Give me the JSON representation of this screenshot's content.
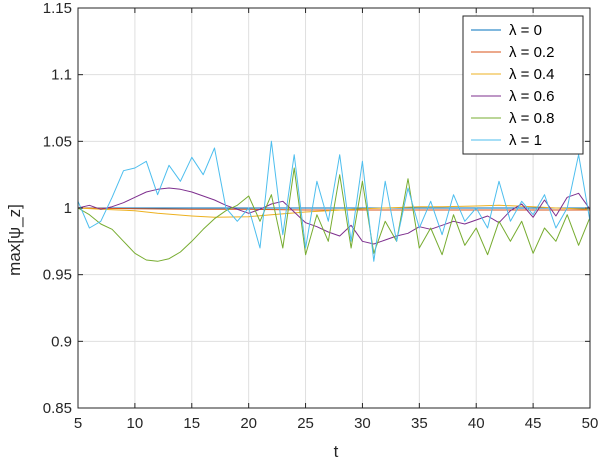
{
  "chart_data": {
    "type": "line",
    "xlabel": "t",
    "ylabel": "max[ψ_z]",
    "xlim": [
      5,
      50
    ],
    "ylim": [
      0.85,
      1.15
    ],
    "xticks": [
      5,
      10,
      15,
      20,
      25,
      30,
      35,
      40,
      45,
      50
    ],
    "yticks": [
      0.85,
      0.9,
      0.95,
      1,
      1.05,
      1.1,
      1.15
    ],
    "xtick_labels": [
      "5",
      "10",
      "15",
      "20",
      "25",
      "30",
      "35",
      "40",
      "45",
      "50"
    ],
    "ytick_labels": [
      "0.85",
      "0.9",
      "0.95",
      "1",
      "1.05",
      "1.1",
      "1.15"
    ],
    "grid": true,
    "legend_position": "top-right",
    "series": [
      {
        "name": "λ = 0",
        "color": "#0072BD",
        "x": [
          5,
          10,
          15,
          20,
          25,
          30,
          35,
          40,
          45,
          50
        ],
        "y": [
          1.0,
          1.0,
          1.0,
          1.0,
          1.0,
          1.0,
          1.0,
          1.0,
          1.0,
          1.0
        ]
      },
      {
        "name": "λ = 0.2",
        "color": "#D95319",
        "x": [
          5,
          10,
          15,
          20,
          25,
          30,
          35,
          40,
          45,
          50
        ],
        "y": [
          1.0,
          0.9995,
          0.999,
          0.999,
          0.9985,
          0.9985,
          0.9985,
          0.9985,
          0.9985,
          0.9985
        ]
      },
      {
        "name": "λ = 0.4",
        "color": "#EDB120",
        "x": [
          5,
          7,
          10,
          12,
          15,
          17,
          20,
          22,
          25,
          27,
          30,
          32,
          35,
          37,
          40,
          42,
          45,
          47,
          50
        ],
        "y": [
          1.0,
          0.999,
          0.998,
          0.996,
          0.994,
          0.993,
          0.9935,
          0.995,
          0.997,
          0.998,
          0.9995,
          1.0,
          1.001,
          1.001,
          1.0015,
          1.002,
          1.001,
          1.0,
          0.999
        ]
      },
      {
        "name": "λ = 0.6",
        "color": "#7E2F8E",
        "x": [
          5,
          6,
          7,
          8,
          9,
          10,
          11,
          12,
          13,
          14,
          15,
          16,
          17,
          18,
          19,
          20,
          21,
          22,
          23,
          24,
          25,
          26,
          27,
          28,
          29,
          30,
          31,
          32,
          33,
          34,
          35,
          36,
          37,
          38,
          39,
          40,
          41,
          42,
          43,
          44,
          45,
          46,
          47,
          48,
          49,
          50
        ],
        "y": [
          1.0,
          1.002,
          0.999,
          1.001,
          1.004,
          1.008,
          1.012,
          1.014,
          1.015,
          1.014,
          1.012,
          1.009,
          1.006,
          1.002,
          0.999,
          0.996,
          0.999,
          1.003,
          1.005,
          0.997,
          0.989,
          0.986,
          0.982,
          0.979,
          0.987,
          0.975,
          0.973,
          0.976,
          0.979,
          0.981,
          0.986,
          0.984,
          0.987,
          0.99,
          0.988,
          0.991,
          0.994,
          0.989,
          0.998,
          1.003,
          0.993,
          1.006,
          0.994,
          1.008,
          1.011,
          0.999
        ]
      },
      {
        "name": "λ = 0.8",
        "color": "#77AC30",
        "x": [
          5,
          6,
          7,
          8,
          9,
          10,
          11,
          12,
          13,
          14,
          15,
          16,
          17,
          18,
          19,
          20,
          21,
          22,
          23,
          24,
          25,
          26,
          27,
          28,
          29,
          30,
          31,
          32,
          33,
          34,
          35,
          36,
          37,
          38,
          39,
          40,
          41,
          42,
          43,
          44,
          45,
          46,
          47,
          48,
          49,
          50
        ],
        "y": [
          1.0,
          0.995,
          0.988,
          0.984,
          0.975,
          0.966,
          0.961,
          0.96,
          0.962,
          0.967,
          0.975,
          0.984,
          0.992,
          0.998,
          1.002,
          1.009,
          0.99,
          1.01,
          0.97,
          1.03,
          0.965,
          0.995,
          0.975,
          1.025,
          0.97,
          1.02,
          0.966,
          0.99,
          0.975,
          1.022,
          0.97,
          0.985,
          0.965,
          0.995,
          0.972,
          0.985,
          0.965,
          0.99,
          0.975,
          0.99,
          0.966,
          0.985,
          0.975,
          0.995,
          0.972,
          0.993
        ]
      },
      {
        "name": "λ = 1",
        "color": "#4DBEEE",
        "x": [
          5,
          6,
          7,
          8,
          9,
          10,
          11,
          12,
          13,
          14,
          15,
          16,
          17,
          18,
          19,
          20,
          21,
          22,
          23,
          24,
          25,
          26,
          27,
          28,
          29,
          30,
          31,
          32,
          33,
          34,
          35,
          36,
          37,
          38,
          39,
          40,
          41,
          42,
          43,
          44,
          45,
          46,
          47,
          48,
          49,
          50
        ],
        "y": [
          1.005,
          0.985,
          0.99,
          1.008,
          1.028,
          1.03,
          1.035,
          1.01,
          1.032,
          1.02,
          1.038,
          1.025,
          1.045,
          1.0,
          0.99,
          1.0,
          0.97,
          1.05,
          0.98,
          1.04,
          0.97,
          1.02,
          0.99,
          1.04,
          0.975,
          1.035,
          0.96,
          1.02,
          0.975,
          1.015,
          0.985,
          1.005,
          0.98,
          1.01,
          0.99,
          1.0,
          0.985,
          1.02,
          0.99,
          1.005,
          0.995,
          1.01,
          0.985,
          1.0,
          1.04,
          0.99
        ]
      }
    ]
  }
}
